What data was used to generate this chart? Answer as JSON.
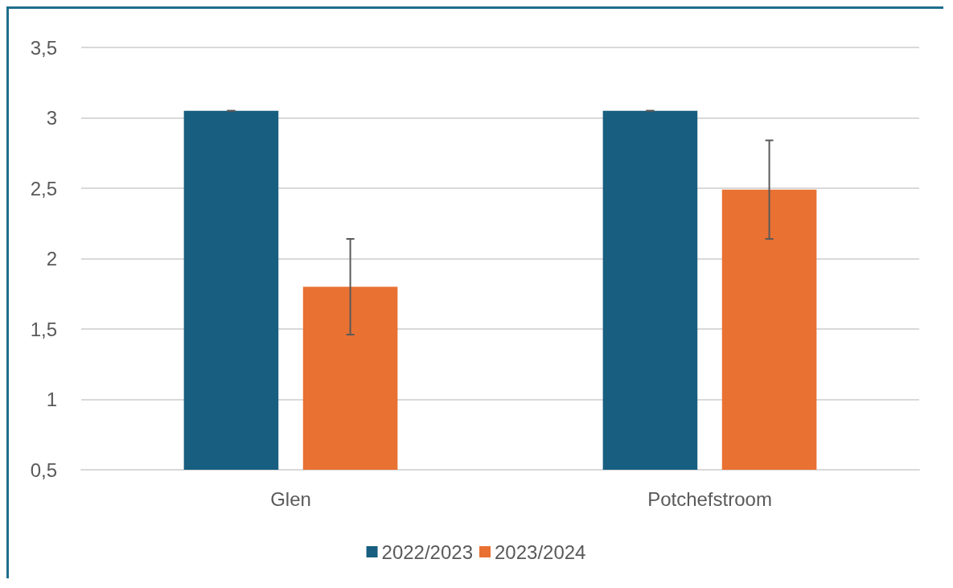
{
  "chart_data": {
    "type": "bar",
    "categories": [
      "Glen",
      "Potchefstroom"
    ],
    "series": [
      {
        "name": "2022/2023",
        "color": "#185e80",
        "values": [
          3.05,
          3.05
        ],
        "errors": [
          0,
          0
        ]
      },
      {
        "name": "2023/2024",
        "color": "#e97132",
        "values": [
          1.8,
          2.49
        ],
        "errors": [
          0.34,
          0.35
        ]
      }
    ],
    "ylim": [
      0.5,
      3.5
    ],
    "yticks": [
      {
        "value": 0.5,
        "label": "0,5"
      },
      1,
      {
        "value": 1.5,
        "label": "1,5"
      },
      2,
      {
        "value": 2.5,
        "label": "2,5"
      },
      3,
      {
        "value": 3.5,
        "label": "3,5"
      }
    ],
    "grid": "y",
    "legend": "bottom"
  }
}
